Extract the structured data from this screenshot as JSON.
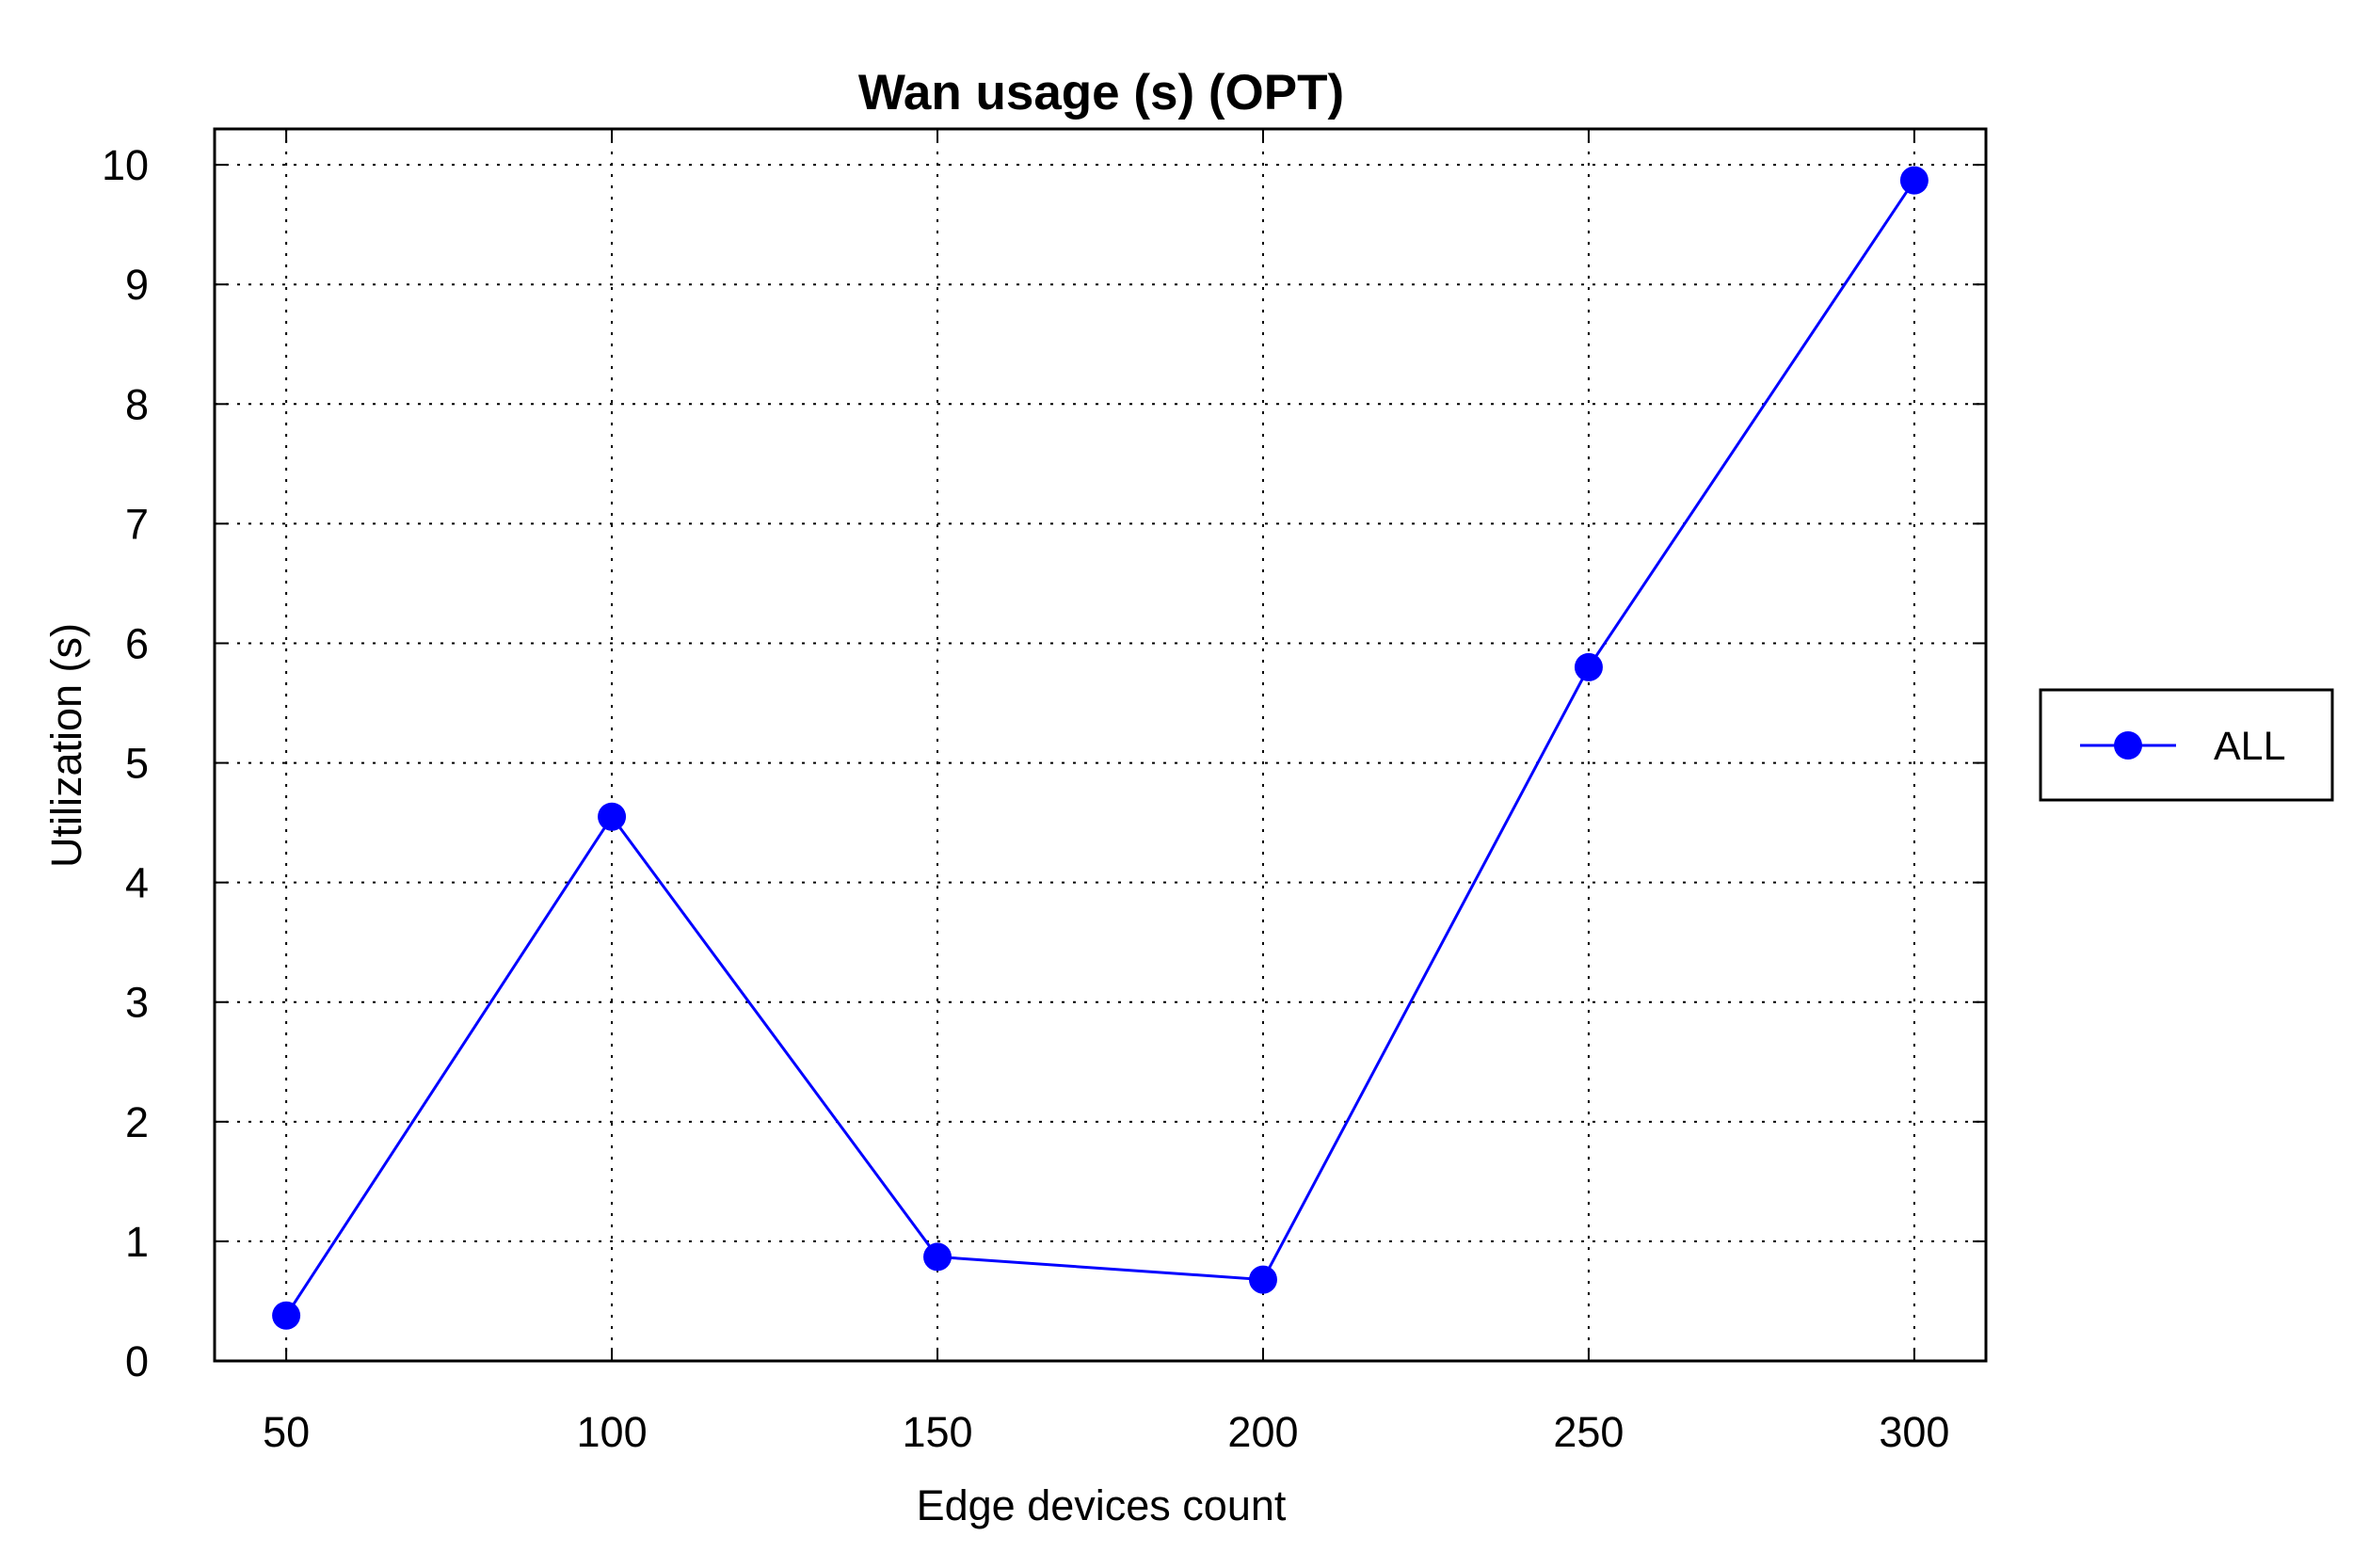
{
  "chart_data": {
    "type": "line",
    "title": "Wan usage (s) (OPT)",
    "xlabel": "Edge devices count",
    "ylabel": "Utilization (s)",
    "x": [
      50,
      100,
      150,
      200,
      250,
      300
    ],
    "x_ticks": [
      "50",
      "100",
      "150",
      "200",
      "250",
      "300"
    ],
    "y_ticks": [
      "0",
      "1",
      "2",
      "3",
      "4",
      "5",
      "6",
      "7",
      "8",
      "9",
      "10"
    ],
    "xlim": [
      39,
      311
    ],
    "ylim": [
      0,
      10.3
    ],
    "grid": true,
    "legend_position": "right",
    "series": [
      {
        "name": "ALL",
        "color": "#0000ff",
        "marker": "circle",
        "values": [
          0.38,
          4.55,
          0.87,
          0.68,
          5.8,
          9.87
        ]
      }
    ]
  }
}
